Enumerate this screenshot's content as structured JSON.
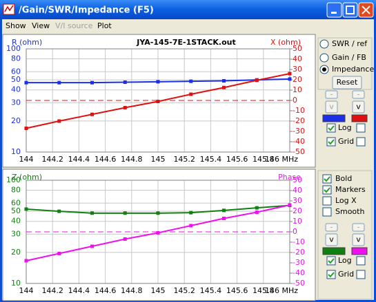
{
  "window": {
    "title": "/Gain/SWR/Impedance (F5)",
    "menu": [
      "Show",
      "View",
      "V/I source",
      "Plot"
    ]
  },
  "panel": {
    "modes": [
      {
        "label": "SWR / ref",
        "selected": false
      },
      {
        "label": "Gain / FB",
        "selected": false
      },
      {
        "label": "Impedance",
        "selected": true
      }
    ],
    "reset": "Reset",
    "top": {
      "buttons": [
        "-",
        "-",
        "v",
        "v"
      ],
      "checks": [
        {
          "label": "Log",
          "checked": true,
          "second_checked": false
        },
        {
          "label": "Grid",
          "checked": true,
          "second_checked": false
        }
      ]
    },
    "options": [
      {
        "label": "Bold",
        "checked": true
      },
      {
        "label": "Markers",
        "checked": true
      },
      {
        "label": "Log X",
        "checked": false
      },
      {
        "label": "Smooth",
        "checked": false
      }
    ],
    "bottom": {
      "buttons": [
        "-",
        "-",
        "v",
        "v"
      ],
      "checks": [
        {
          "label": "Log",
          "checked": true,
          "second_checked": false
        },
        {
          "label": "Grid",
          "checked": true,
          "second_checked": false
        }
      ]
    }
  },
  "chart_data": [
    {
      "type": "line",
      "title": "JYA-145-7E-1STACK.out",
      "y_label": "R (ohm)",
      "y2_label": "X (ohm)",
      "x": [
        144,
        144.25,
        144.5,
        144.75,
        145,
        145.25,
        145.5,
        145.75,
        146
      ],
      "series": [
        {
          "color": "#1c2ee8",
          "values": [
            47,
            47,
            47,
            47.5,
            48,
            48.5,
            49,
            50,
            51
          ]
        },
        {
          "color": "#e01010",
          "axis": "y2",
          "values": [
            -27,
            -20,
            -13.5,
            -7,
            -1,
            6,
            12.5,
            19.5,
            26
          ]
        }
      ],
      "reference": 0,
      "xlim": [
        144,
        146
      ],
      "xticks": [
        144,
        144.2,
        144.4,
        144.6,
        144.8,
        145,
        145.2,
        145.4,
        145.6,
        145.8,
        {
          "value": 146,
          "label": "146 MHz"
        }
      ],
      "ylog": true,
      "ylim": [
        10,
        100
      ],
      "yticks": [
        10,
        20,
        30,
        40,
        50,
        60,
        80,
        100
      ],
      "y2lim": [
        -50,
        50
      ],
      "y2ticks": [
        -50,
        -40,
        -30,
        -20,
        -10,
        0,
        10,
        20,
        30,
        40,
        50
      ],
      "grid": true
    },
    {
      "type": "line",
      "y_label": "Z (ohm)",
      "y2_label": "Phase",
      "x": [
        144,
        144.25,
        144.5,
        144.75,
        145,
        145.25,
        145.5,
        145.75,
        146
      ],
      "series": [
        {
          "color": "#108010",
          "values": [
            52.5,
            50,
            48,
            48,
            48,
            48.5,
            51,
            54,
            57
          ]
        },
        {
          "color": "#ee10ee",
          "axis": "y2",
          "values": [
            -28,
            -21,
            -14,
            -7,
            -1,
            6,
            13,
            19,
            26
          ]
        }
      ],
      "reference": 0,
      "xlim": [
        144,
        146
      ],
      "xticks": [
        144,
        144.2,
        144.4,
        144.6,
        144.8,
        145,
        145.2,
        145.4,
        145.6,
        145.8,
        {
          "value": 146,
          "label": "146 MHz"
        }
      ],
      "ylog": true,
      "ylim": [
        10,
        100
      ],
      "yticks": [
        10,
        20,
        30,
        40,
        50,
        60,
        80,
        100
      ],
      "y2lim": [
        -50,
        50
      ],
      "y2ticks": [
        -50,
        -40,
        -30,
        -20,
        -10,
        0,
        10,
        20,
        30,
        40,
        50
      ],
      "grid": true
    }
  ]
}
